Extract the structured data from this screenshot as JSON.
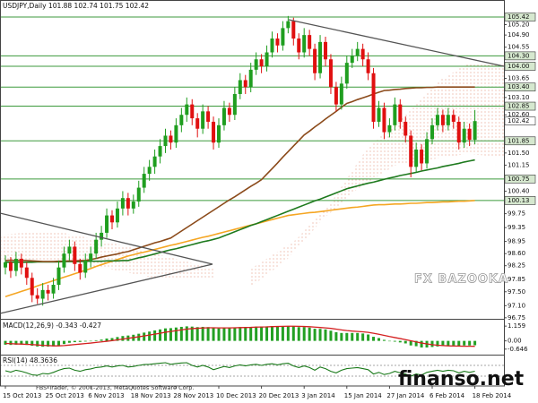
{
  "chart_data": {
    "type": "candlestick",
    "title": "USDJPY,Daily 101.88 102.74 101.75 102.42",
    "categories": [
      "15 Oct 2013",
      null,
      null,
      null,
      null,
      null,
      null,
      null,
      "25 Oct 2013",
      null,
      null,
      null,
      null,
      null,
      null,
      null,
      "6 Nov 2013",
      null,
      null,
      null,
      null,
      null,
      null,
      null,
      "18 Nov 2013",
      null,
      null,
      null,
      null,
      null,
      null,
      null,
      "28 Nov 2013",
      null,
      null,
      null,
      null,
      null,
      null,
      null,
      "10 Dec 2013",
      null,
      null,
      null,
      null,
      null,
      null,
      null,
      "20 Dec 2013",
      null,
      null,
      null,
      null,
      null,
      null,
      null,
      "3 Jan 2014",
      null,
      null,
      null,
      null,
      null,
      null,
      null,
      "15 Jan 2014",
      null,
      null,
      null,
      null,
      null,
      null,
      null,
      "27 Jan 2014",
      null,
      null,
      null,
      null,
      null,
      null,
      null,
      "6 Feb 2014",
      null,
      null,
      null,
      null,
      null,
      null,
      null,
      "18 Feb 2014"
    ],
    "open": [
      98.2,
      98.35,
      98.1,
      98.45,
      98.2,
      97.9,
      97.4,
      97.3,
      97.55,
      97.45,
      97.7,
      98.2,
      98.6,
      98.8,
      98.3,
      98.05,
      98.4,
      98.6,
      99.0,
      99.2,
      99.7,
      99.5,
      99.9,
      100.2,
      99.9,
      100.1,
      100.5,
      100.9,
      101.1,
      101.4,
      101.7,
      102.0,
      101.8,
      102.3,
      102.6,
      102.9,
      102.5,
      102.2,
      102.7,
      102.4,
      101.8,
      102.3,
      102.8,
      102.6,
      103.2,
      103.6,
      103.4,
      103.9,
      104.2,
      104.0,
      104.4,
      104.8,
      104.6,
      105.1,
      105.3,
      104.8,
      104.4,
      104.9,
      104.5,
      103.8,
      104.7,
      104.2,
      103.4,
      102.9,
      103.5,
      104.1,
      104.3,
      104.5,
      104.2,
      103.8,
      102.4,
      102.8,
      102.1,
      102.3,
      102.9,
      102.4,
      102.0,
      101.1,
      101.6,
      101.2,
      101.9,
      102.3,
      102.6,
      102.3,
      102.6,
      102.4,
      101.8,
      102.2,
      101.88
    ],
    "high": [
      98.55,
      98.5,
      98.65,
      98.6,
      98.35,
      98.05,
      97.6,
      97.75,
      97.7,
      97.9,
      98.4,
      98.8,
      99.0,
      98.95,
      98.45,
      98.6,
      98.8,
      99.2,
      99.4,
      99.9,
      99.85,
      100.1,
      100.4,
      100.35,
      100.3,
      100.7,
      101.1,
      101.3,
      101.6,
      101.9,
      102.2,
      102.15,
      102.5,
      102.8,
      103.1,
      103.05,
      102.65,
      102.9,
      102.85,
      102.55,
      102.5,
      103.0,
      102.95,
      103.4,
      103.8,
      103.75,
      104.1,
      104.4,
      104.35,
      104.6,
      105.0,
      104.95,
      105.3,
      105.45,
      105.4,
      104.95,
      105.1,
      105.05,
      104.65,
      104.9,
      104.85,
      104.35,
      103.55,
      103.7,
      104.3,
      104.5,
      104.7,
      104.65,
      104.4,
      103.95,
      103.0,
      102.95,
      102.5,
      103.1,
      103.05,
      102.55,
      102.15,
      101.8,
      101.75,
      102.1,
      102.5,
      102.8,
      102.75,
      102.8,
      102.75,
      102.55,
      102.4,
      102.35,
      102.74
    ],
    "low": [
      98.0,
      97.9,
      97.95,
      98.0,
      97.7,
      97.2,
      97.15,
      97.1,
      97.25,
      97.3,
      97.55,
      98.05,
      98.4,
      98.1,
      97.85,
      97.9,
      98.2,
      98.45,
      98.8,
      99.05,
      99.3,
      99.35,
      99.7,
      99.7,
      99.75,
      99.95,
      100.35,
      100.7,
      100.9,
      101.2,
      101.5,
      101.6,
      101.65,
      102.1,
      102.4,
      102.3,
      101.95,
      102.05,
      102.2,
      101.6,
      101.65,
      102.15,
      102.4,
      102.45,
      103.05,
      103.2,
      103.25,
      103.75,
      103.8,
      103.85,
      104.25,
      104.4,
      104.45,
      104.95,
      104.6,
      104.2,
      104.25,
      104.3,
      103.6,
      103.65,
      104.0,
      103.2,
      102.7,
      102.75,
      103.35,
      103.95,
      104.15,
      104.0,
      103.6,
      102.2,
      102.25,
      101.9,
      101.95,
      102.15,
      102.2,
      101.8,
      100.8,
      100.95,
      101.0,
      101.05,
      101.75,
      102.15,
      102.1,
      102.15,
      102.2,
      101.6,
      101.65,
      101.7,
      101.75
    ],
    "close": [
      98.35,
      98.1,
      98.45,
      98.2,
      97.9,
      97.4,
      97.3,
      97.55,
      97.45,
      97.7,
      98.2,
      98.6,
      98.8,
      98.3,
      98.05,
      98.4,
      98.6,
      99.0,
      99.2,
      99.7,
      99.5,
      99.9,
      100.2,
      99.9,
      100.1,
      100.5,
      100.9,
      101.1,
      101.4,
      101.7,
      102.0,
      101.8,
      102.3,
      102.6,
      102.9,
      102.5,
      102.2,
      102.7,
      102.4,
      101.8,
      102.3,
      102.8,
      102.6,
      103.2,
      103.6,
      103.4,
      103.9,
      104.2,
      104.0,
      104.4,
      104.8,
      104.6,
      105.1,
      105.3,
      104.8,
      104.4,
      104.9,
      104.5,
      103.8,
      104.7,
      104.2,
      103.4,
      102.9,
      103.5,
      104.1,
      104.3,
      104.5,
      104.2,
      103.8,
      102.4,
      102.8,
      102.1,
      102.3,
      102.9,
      102.4,
      102.0,
      101.1,
      101.6,
      101.2,
      101.9,
      102.3,
      102.6,
      102.3,
      102.6,
      102.4,
      101.8,
      102.2,
      101.88,
      102.42
    ],
    "up_color": "#1f9e1f",
    "down_color": "#e01010",
    "ylim": [
      96.72,
      105.91
    ],
    "yticks": [
      105.42,
      {
        "value": 105.2,
        "label": "105.20"
      },
      {
        "value": 104.9,
        "label": "104.90"
      },
      104.55,
      {
        "value": 104.3,
        "label": "104.30"
      },
      {
        "value": 104,
        "label": "104.00"
      },
      103.65,
      {
        "value": 103.4,
        "label": "103.40"
      },
      {
        "value": 103.1,
        "label": "103.10"
      },
      102.85,
      {
        "value": 102.6,
        "label": "102.60"
      },
      102.42,
      101.85,
      {
        "value": 101.5,
        "label": "101.50"
      },
      101.15,
      100.75,
      {
        "value": 100.4,
        "label": "100.40"
      },
      100.13,
      99.75,
      99.35,
      98.95,
      {
        "value": 98.6,
        "label": "98.60"
      },
      98.25,
      97.85,
      {
        "value": 97.5,
        "label": "97.50"
      },
      {
        "value": 97.1,
        "label": "97.10"
      },
      96.75
    ],
    "levels": [
      105.42,
      104.3,
      104.0,
      103.4,
      102.85,
      101.85,
      100.75,
      100.13
    ],
    "level_color": "#3c9a3c",
    "overlays": [
      {
        "type": "line",
        "color": "#f5a623",
        "values": [
          97.36,
          97.41,
          97.46,
          97.51,
          97.56,
          97.61,
          97.67,
          97.72,
          97.77,
          97.82,
          97.87,
          97.92,
          97.97,
          98.02,
          98.07,
          98.12,
          98.17,
          98.23,
          98.28,
          98.33,
          98.38,
          98.43,
          98.48,
          98.53,
          98.57,
          98.61,
          98.64,
          98.68,
          98.72,
          98.76,
          98.8,
          98.84,
          98.87,
          98.91,
          98.95,
          98.99,
          99.03,
          99.07,
          99.1,
          99.14,
          99.18,
          99.22,
          99.26,
          99.3,
          99.34,
          99.38,
          99.42,
          99.46,
          99.5,
          99.54,
          99.58,
          99.62,
          99.66,
          99.7,
          99.72,
          99.74,
          99.76,
          99.78,
          99.79,
          99.81,
          99.83,
          99.85,
          99.87,
          99.89,
          99.91,
          99.93,
          99.94,
          99.96,
          99.98,
          100.0,
          100.01,
          100.01,
          100.02,
          100.03,
          100.03,
          100.04,
          100.05,
          100.05,
          100.06,
          100.07,
          100.07,
          100.08,
          100.09,
          100.09,
          100.1,
          100.11,
          100.11,
          100.12,
          100.13
        ]
      },
      {
        "type": "line",
        "color": "#1e7a1e",
        "values": [
          98.35,
          98.35,
          98.35,
          98.35,
          98.35,
          98.35,
          98.36,
          98.36,
          98.36,
          98.36,
          98.36,
          98.37,
          98.37,
          98.37,
          98.37,
          98.38,
          98.38,
          98.38,
          98.38,
          98.39,
          98.39,
          98.39,
          98.4,
          98.4,
          98.44,
          98.48,
          98.51,
          98.55,
          98.59,
          98.63,
          98.67,
          98.71,
          98.74,
          98.78,
          98.82,
          98.86,
          98.9,
          98.94,
          98.97,
          99.01,
          99.05,
          99.11,
          99.17,
          99.23,
          99.29,
          99.35,
          99.41,
          99.46,
          99.52,
          99.58,
          99.64,
          99.7,
          99.76,
          99.82,
          99.88,
          99.94,
          100.0,
          100.06,
          100.12,
          100.17,
          100.23,
          100.29,
          100.35,
          100.41,
          100.47,
          100.51,
          100.55,
          100.59,
          100.63,
          100.66,
          100.7,
          100.74,
          100.78,
          100.81,
          100.85,
          100.88,
          100.91,
          100.94,
          100.98,
          101.01,
          101.04,
          101.07,
          101.11,
          101.14,
          101.17,
          101.2,
          101.24,
          101.27,
          101.3
        ]
      },
      {
        "type": "line",
        "color": "#8b4a1a",
        "values": [
          98.4,
          98.41,
          98.4,
          98.41,
          98.4,
          98.39,
          98.38,
          98.37,
          98.37,
          98.37,
          98.38,
          98.38,
          98.39,
          98.39,
          98.4,
          98.4,
          98.43,
          98.46,
          98.5,
          98.53,
          98.56,
          98.59,
          98.63,
          98.66,
          98.71,
          98.76,
          98.81,
          98.86,
          98.91,
          98.95,
          99.0,
          99.05,
          99.15,
          99.25,
          99.35,
          99.45,
          99.55,
          99.65,
          99.75,
          99.85,
          99.95,
          100.05,
          100.15,
          100.24,
          100.34,
          100.44,
          100.54,
          100.63,
          100.73,
          100.89,
          101.05,
          101.21,
          101.38,
          101.54,
          101.7,
          101.86,
          102.02,
          102.13,
          102.25,
          102.36,
          102.48,
          102.59,
          102.7,
          102.82,
          102.93,
          102.98,
          103.04,
          103.09,
          103.14,
          103.2,
          103.25,
          103.3,
          103.31,
          103.33,
          103.34,
          103.36,
          103.37,
          103.38,
          103.38,
          103.39,
          103.39,
          103.4,
          103.4,
          103.4,
          103.4,
          103.4,
          103.4,
          103.4,
          103.4
        ]
      }
    ],
    "macd": {
      "label": "MACD(12,26,9) -0.343 -0.427",
      "ylim": [
        -1.08,
        1.66
      ],
      "yticks": [
        1.159,
        {
          "value": 0,
          "label": "0.00"
        },
        -0.646
      ],
      "histogram": {
        "color": "#23a023",
        "values": [
          -0.3,
          -0.32,
          -0.3,
          -0.3,
          -0.32,
          -0.38,
          -0.44,
          -0.46,
          -0.45,
          -0.43,
          -0.36,
          -0.25,
          -0.15,
          -0.1,
          -0.08,
          -0.05,
          0.0,
          0.05,
          0.1,
          0.18,
          0.22,
          0.3,
          0.38,
          0.42,
          0.48,
          0.56,
          0.65,
          0.73,
          0.82,
          0.9,
          0.98,
          1.0,
          1.05,
          1.1,
          1.14,
          1.12,
          1.08,
          1.1,
          1.08,
          1.0,
          0.98,
          1.0,
          1.0,
          1.04,
          1.08,
          1.08,
          1.1,
          1.12,
          1.12,
          1.14,
          1.16,
          1.14,
          1.16,
          1.17,
          1.14,
          1.08,
          1.08,
          1.04,
          0.95,
          0.94,
          0.9,
          0.8,
          0.68,
          0.62,
          0.62,
          0.62,
          0.62,
          0.58,
          0.5,
          0.32,
          0.22,
          0.08,
          -0.02,
          -0.06,
          -0.12,
          -0.2,
          -0.36,
          -0.42,
          -0.52,
          -0.52,
          -0.48,
          -0.44,
          -0.4,
          -0.38,
          -0.36,
          -0.38,
          -0.36,
          -0.36,
          -0.343
        ]
      },
      "signal": {
        "color": "#d42020",
        "values": [
          -0.2,
          -0.22,
          -0.24,
          -0.25,
          -0.27,
          -0.29,
          -0.32,
          -0.35,
          -0.37,
          -0.39,
          -0.39,
          -0.37,
          -0.33,
          -0.29,
          -0.25,
          -0.21,
          -0.17,
          -0.12,
          -0.08,
          -0.03,
          0.02,
          0.08,
          0.14,
          0.2,
          0.26,
          0.32,
          0.39,
          0.46,
          0.53,
          0.6,
          0.68,
          0.74,
          0.8,
          0.86,
          0.92,
          0.96,
          0.99,
          1.01,
          1.03,
          1.03,
          1.02,
          1.02,
          1.02,
          1.03,
          1.04,
          1.05,
          1.06,
          1.08,
          1.09,
          1.1,
          1.12,
          1.13,
          1.14,
          1.15,
          1.15,
          1.14,
          1.13,
          1.11,
          1.08,
          1.05,
          1.02,
          0.98,
          0.92,
          0.86,
          0.81,
          0.77,
          0.74,
          0.71,
          0.67,
          0.6,
          0.52,
          0.43,
          0.34,
          0.26,
          0.18,
          0.1,
          0.01,
          -0.08,
          -0.17,
          -0.24,
          -0.3,
          -0.34,
          -0.37,
          -0.39,
          -0.4,
          -0.41,
          -0.42,
          -0.42,
          -0.427
        ]
      }
    },
    "rsi": {
      "label": "RSI(14) 48.3636",
      "ylim": [
        0,
        100
      ],
      "levels": [
        70,
        30
      ],
      "color": "#1a7a1a",
      "values": [
        50,
        45,
        52,
        48,
        42,
        35,
        33,
        40,
        38,
        44,
        52,
        58,
        60,
        52,
        48,
        54,
        57,
        62,
        64,
        68,
        64,
        68,
        70,
        64,
        66,
        70,
        73,
        74,
        76,
        78,
        80,
        74,
        77,
        79,
        80,
        70,
        64,
        70,
        64,
        54,
        60,
        66,
        62,
        68,
        72,
        68,
        72,
        74,
        70,
        74,
        76,
        72,
        76,
        78,
        68,
        62,
        68,
        62,
        52,
        64,
        58,
        48,
        42,
        52,
        58,
        60,
        62,
        58,
        54,
        38,
        44,
        36,
        40,
        48,
        42,
        38,
        30,
        38,
        34,
        44,
        48,
        52,
        48,
        52,
        50,
        42,
        48,
        44,
        48.3636
      ]
    },
    "copyright": "FBS Trader, © 2001-2013, MetaQuotes Software Corp.",
    "logo": "FX BAZOOKA",
    "watermark": "finanso.net"
  }
}
